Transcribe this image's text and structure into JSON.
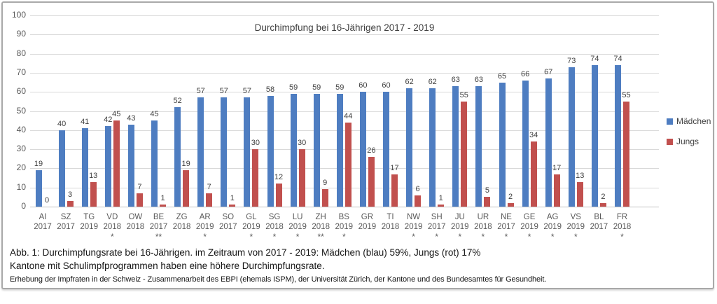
{
  "chart_data": {
    "type": "bar",
    "title": "Durchimpfung bei 16-Jährigen 2017 - 2019",
    "xlabel": "",
    "ylabel": "",
    "ylim": [
      0,
      100
    ],
    "ytick_step": 10,
    "grid": true,
    "legend_position": "right",
    "categories": [
      "AI",
      "SZ",
      "TG",
      "VD",
      "OW",
      "BE",
      "ZG",
      "AR",
      "SO",
      "GL",
      "SG",
      "LU",
      "ZH",
      "BS",
      "GR",
      "TI",
      "NW",
      "SH",
      "JU",
      "UR",
      "NE",
      "GE",
      "AG",
      "VS",
      "BL",
      "FR"
    ],
    "years": [
      "2017",
      "2017",
      "2019",
      "2018",
      "2018",
      "2017",
      "2018",
      "2019",
      "2017",
      "2019",
      "2018",
      "2019",
      "2018",
      "2019",
      "2019",
      "2018",
      "2019",
      "2017",
      "2019",
      "2018",
      "2017",
      "2019",
      "2019",
      "2019",
      "2017",
      "2018"
    ],
    "marks": [
      "",
      "",
      "",
      "*",
      "",
      "**",
      "",
      "*",
      "",
      "*",
      "*",
      "*",
      "**",
      "*",
      "",
      "",
      "*",
      "*",
      "*",
      "*",
      "*",
      "*",
      "*",
      "*",
      "",
      "*"
    ],
    "series": [
      {
        "name": "Mädchen",
        "color": "#4E7DC1",
        "values": [
          19,
          40,
          41,
          42,
          43,
          45,
          52,
          57,
          57,
          57,
          58,
          59,
          59,
          59,
          60,
          60,
          62,
          62,
          63,
          63,
          65,
          66,
          67,
          73,
          74,
          74
        ]
      },
      {
        "name": "Jungs",
        "color": "#C1504E",
        "values": [
          0,
          3,
          13,
          45,
          7,
          1,
          19,
          7,
          1,
          30,
          12,
          30,
          9,
          44,
          26,
          17,
          6,
          1,
          55,
          5,
          2,
          34,
          17,
          13,
          2,
          55
        ]
      }
    ]
  },
  "caption": {
    "line1": "Abb. 1: Durchimpfungsrate bei 16-Jährigen. im Zeitraum von 2017 - 2019: Mädchen (blau) 59%, Jungs (rot) 17%",
    "line2": "Kantone mit Schulimpfprogrammen haben eine höhere Durchimpfungsrate.",
    "source": "Erhebung der Impfraten in der Schweiz - Zusammenarbeit des EBPI (ehemals ISPM), der Universität Zürich, der Kantone und des Bundesamtes für Gesundheit."
  }
}
